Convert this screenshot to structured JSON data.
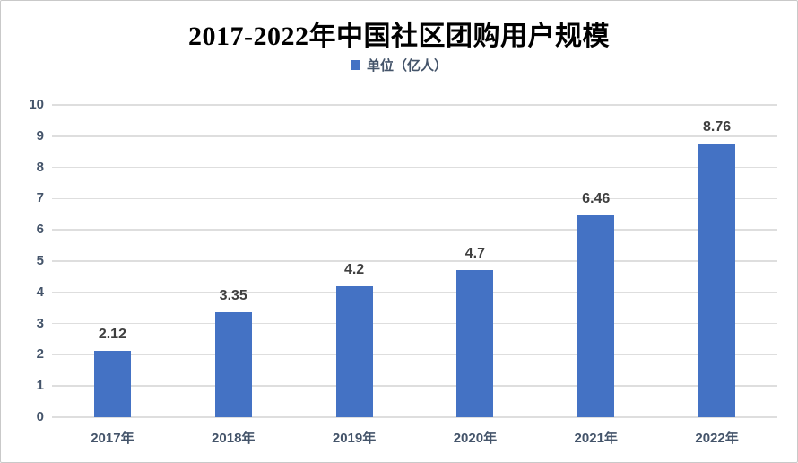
{
  "title": "2017-2022年中国社区团购用户规模",
  "legend": {
    "label": "单位（亿人）",
    "swatch_color": "#4472c4"
  },
  "chart_data": {
    "type": "bar",
    "title": "2017-2022年中国社区团购用户规模",
    "categories": [
      "2017年",
      "2018年",
      "2019年",
      "2020年",
      "2021年",
      "2022年"
    ],
    "values": [
      2.12,
      3.35,
      4.2,
      4.7,
      6.46,
      8.76
    ],
    "data_labels": [
      "2.12",
      "3.35",
      "4.2",
      "4.7",
      "6.46",
      "8.76"
    ],
    "series_name": "单位（亿人）",
    "xlabel": "",
    "ylabel": "",
    "ylim": [
      0,
      10
    ],
    "ytick_step": 1,
    "ytick_labels": [
      "0",
      "1",
      "2",
      "3",
      "4",
      "5",
      "6",
      "7",
      "8",
      "9",
      "10"
    ],
    "grid": true,
    "legend_position": "top",
    "bar_color": "#4472c4",
    "gridline_color": "#dedede",
    "tick_label_color": "#44546a",
    "data_label_color": "#3f3f3f"
  }
}
